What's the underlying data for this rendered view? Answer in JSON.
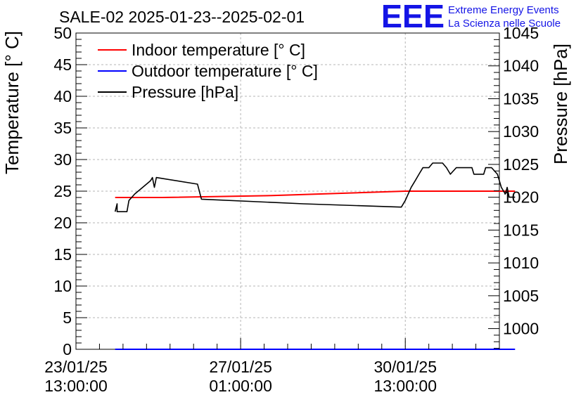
{
  "chart_data": {
    "type": "line",
    "title": "SALE-02 2025-01-23--2025-02-01",
    "logo": {
      "mark": "EEE",
      "line1": "Extreme Energy Events",
      "line2": "La Scienza nelle Scuole",
      "color": "#1414e6"
    },
    "y_left": {
      "label": "Temperature [° C]",
      "range": [
        0,
        50
      ],
      "ticks": [
        "0",
        "5",
        "10",
        "15",
        "20",
        "25",
        "30",
        "35",
        "40",
        "45",
        "50"
      ]
    },
    "y_right": {
      "label": "Pressure [hPa]",
      "range": [
        996.85,
        1045
      ],
      "ticks": [
        "1000",
        "1005",
        "1010",
        "1015",
        "1020",
        "1025",
        "1030",
        "1035",
        "1040",
        "1045"
      ]
    },
    "x_axis": {
      "range_hours": [
        0,
        216
      ],
      "ticks": [
        {
          "hour": 0,
          "line1": "23/01/25",
          "line2": "13:00:00"
        },
        {
          "hour": 84,
          "line1": "27/01/25",
          "line2": "01:00:00"
        },
        {
          "hour": 168,
          "line1": "30/01/25",
          "line2": "13:00:00"
        }
      ]
    },
    "grid": true,
    "legend_position": "top-left",
    "series": [
      {
        "name": "Indoor temperature [° C]",
        "color": "#ff0000",
        "axis": "left",
        "points": [
          [
            20,
            24.0
          ],
          [
            44,
            24.0
          ],
          [
            100,
            24.3
          ],
          [
            168,
            25.0
          ],
          [
            224,
            25.0
          ]
        ]
      },
      {
        "name": "Outdoor temperature [° C]",
        "color": "#0000ff",
        "axis": "left",
        "points": [
          [
            20,
            0
          ],
          [
            224,
            0
          ]
        ]
      },
      {
        "name": "Pressure [hPa]",
        "color": "#000000",
        "axis": "right",
        "points": [
          [
            20,
            1017.8
          ],
          [
            21,
            1019.0
          ],
          [
            21,
            1017.8
          ],
          [
            26,
            1017.8
          ],
          [
            27,
            1019.5
          ],
          [
            30,
            1020.5
          ],
          [
            34,
            1021.5
          ],
          [
            38,
            1022.5
          ],
          [
            39,
            1023.0
          ],
          [
            40,
            1021.5
          ],
          [
            41,
            1023.0
          ],
          [
            62,
            1022.0
          ],
          [
            64,
            1019.7
          ],
          [
            116,
            1019.0
          ],
          [
            166,
            1018.5
          ],
          [
            168,
            1019.5
          ],
          [
            171,
            1021.5
          ],
          [
            173,
            1022.5
          ],
          [
            175,
            1023.5
          ],
          [
            177,
            1024.5
          ],
          [
            180,
            1024.5
          ],
          [
            182,
            1025.2
          ],
          [
            187,
            1025.2
          ],
          [
            189,
            1024.5
          ],
          [
            191,
            1023.5
          ],
          [
            194,
            1024.5
          ],
          [
            202,
            1024.5
          ],
          [
            203,
            1023.5
          ],
          [
            208,
            1023.5
          ],
          [
            209,
            1024.5
          ],
          [
            212,
            1024.5
          ],
          [
            215,
            1023.5
          ],
          [
            217,
            1021.5
          ],
          [
            219,
            1020.5
          ],
          [
            220,
            1021.5
          ],
          [
            221,
            1020.0
          ],
          [
            224,
            1020.0
          ]
        ]
      }
    ]
  }
}
